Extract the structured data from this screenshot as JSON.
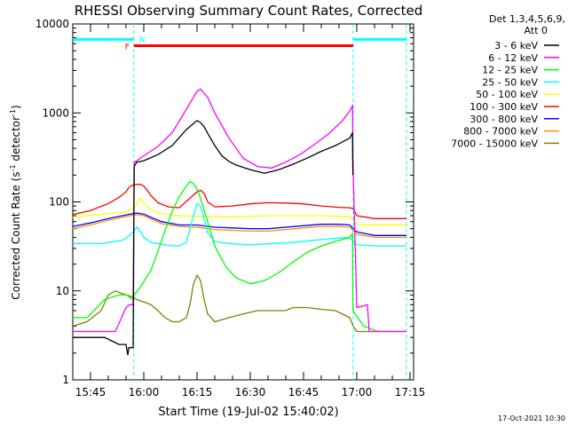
{
  "chart_data": {
    "type": "line",
    "title": "RHESSI Observing Summary Count Rates, Corrected",
    "xlabel": "Start Time (19-Jul-02 15:40:02)",
    "ylabel": "Corrected Count Rate (s",
    "ylabel_sup": "-1",
    "ylabel_mid": " detector",
    "ylabel_sup2": "-1",
    "ylabel_end": ")",
    "x_unit": "minutes since 15:40:02",
    "xlim": [
      0,
      96
    ],
    "ylim": [
      1,
      10000
    ],
    "yscale": "log",
    "x_ticks": [
      {
        "label": "15:45",
        "x": 5
      },
      {
        "label": "16:00",
        "x": 20
      },
      {
        "label": "16:15",
        "x": 35
      },
      {
        "label": "16:30",
        "x": 50
      },
      {
        "label": "16:45",
        "x": 65
      },
      {
        "label": "17:00",
        "x": 80
      },
      {
        "label": "17:15",
        "x": 95
      }
    ],
    "y_ticks": [
      {
        "label": "1",
        "v": 1
      },
      {
        "label": "10",
        "v": 10
      },
      {
        "label": "100",
        "v": 100
      },
      {
        "label": "1000",
        "v": 1000
      },
      {
        "label": "10000",
        "v": 10000
      }
    ],
    "legend_header": [
      "Det 1,3,4,5,6,9,",
      "Att 0"
    ],
    "legend_position": "right",
    "flag_labels": {
      "F": "F",
      "N": "N"
    },
    "flags": [
      {
        "name": "N",
        "color": "#00ffff",
        "y": 6700,
        "segments": [
          [
            0,
            17.2
          ],
          [
            79,
            94
          ]
        ]
      },
      {
        "name": "F",
        "color": "#ff0000",
        "y": 5700,
        "segments": [
          [
            17.2,
            79
          ]
        ]
      }
    ],
    "night_lines": [
      17.2,
      79,
      94
    ],
    "series": [
      {
        "name": "3 - 6 keV",
        "color": "#000000",
        "x": [
          0,
          9,
          13,
          15,
          15.5,
          15.8,
          17,
          17.3,
          18,
          20,
          24,
          28,
          30,
          32,
          34,
          35,
          36,
          37,
          38,
          40,
          42,
          44,
          46,
          50,
          54,
          58,
          62,
          66,
          70,
          74,
          78,
          78.8,
          78.9
        ],
        "y": [
          3,
          3,
          2.5,
          2.5,
          1.9,
          2.3,
          2.3,
          250,
          280,
          290,
          340,
          430,
          530,
          650,
          760,
          820,
          780,
          700,
          590,
          430,
          330,
          285,
          260,
          230,
          210,
          230,
          265,
          310,
          370,
          430,
          520,
          600,
          200
        ]
      },
      {
        "name": "6 - 12 keV",
        "color": "#ff00ff",
        "x": [
          0,
          12,
          15,
          16,
          17,
          17.3,
          18,
          20,
          24,
          28,
          32,
          34,
          35,
          36,
          38,
          40,
          44,
          48,
          52,
          56,
          60,
          64,
          68,
          72,
          76,
          78,
          78.8,
          78.9,
          80,
          82,
          83,
          83.5,
          84,
          86,
          94
        ],
        "y": [
          3.5,
          3.5,
          6.5,
          7,
          7,
          280,
          290,
          330,
          420,
          600,
          1100,
          1500,
          1750,
          1850,
          1500,
          1000,
          520,
          310,
          250,
          240,
          280,
          340,
          440,
          580,
          820,
          1050,
          1200,
          300,
          6.5,
          6.8,
          7,
          3.5,
          3.5,
          3.5,
          3.5
        ]
      },
      {
        "name": "12 - 25 keV",
        "color": "#00ff00",
        "x": [
          0,
          4,
          9,
          13,
          15,
          16,
          17,
          17.3,
          19,
          22,
          24,
          26,
          28,
          30,
          32,
          33,
          34,
          35,
          36,
          38,
          40,
          43,
          46,
          50,
          54,
          58,
          62,
          66,
          70,
          74,
          78,
          78.8,
          78.9,
          82,
          86,
          94
        ],
        "y": [
          5,
          5,
          8,
          9,
          9,
          8.5,
          8,
          9,
          11,
          17,
          28,
          48,
          78,
          115,
          150,
          170,
          160,
          140,
          110,
          60,
          32,
          19,
          14,
          12,
          13,
          16,
          21,
          27,
          32,
          36,
          40,
          44,
          6,
          4,
          3.5,
          3.5
        ]
      },
      {
        "name": "25 - 50 keV",
        "color": "#00ffff",
        "x": [
          0,
          8,
          12,
          14,
          15,
          16,
          17,
          18,
          19,
          20,
          22,
          24,
          26,
          28,
          30,
          32,
          34,
          35,
          36,
          37,
          38,
          40,
          44,
          50,
          56,
          62,
          68,
          74,
          78,
          80,
          86,
          94
        ],
        "y": [
          34,
          34,
          36,
          37,
          39,
          42,
          46,
          52,
          47,
          40,
          35,
          34,
          33,
          32,
          32,
          35,
          70,
          95,
          90,
          65,
          45,
          36,
          34,
          33,
          34,
          35,
          37,
          39,
          40,
          33,
          32,
          32
        ]
      },
      {
        "name": "50 - 100 keV",
        "color": "#ffff00",
        "x": [
          0,
          10,
          15,
          16.5,
          18,
          19,
          20,
          22,
          25,
          30,
          35,
          40,
          45,
          50,
          55,
          60,
          65,
          70,
          75,
          78,
          80,
          85,
          94
        ],
        "y": [
          68,
          74,
          76,
          85,
          93,
          110,
          98,
          82,
          74,
          70,
          69,
          68,
          68,
          69,
          70,
          70,
          70,
          70,
          69,
          68,
          56,
          55,
          55
        ]
      },
      {
        "name": "100 - 300 keV",
        "color": "#ff0000",
        "x": [
          0,
          5,
          10,
          13,
          15,
          16,
          17,
          18,
          19,
          20,
          21,
          22,
          24,
          27,
          30,
          33,
          35,
          36,
          37,
          38,
          40,
          45,
          50,
          55,
          60,
          65,
          70,
          75,
          78,
          79,
          80,
          85,
          94
        ],
        "y": [
          72,
          80,
          96,
          112,
          130,
          148,
          155,
          157,
          158,
          150,
          135,
          118,
          98,
          88,
          86,
          110,
          130,
          135,
          125,
          100,
          88,
          90,
          95,
          98,
          97,
          95,
          90,
          87,
          86,
          84,
          70,
          65,
          65
        ]
      },
      {
        "name": "300 - 800 keV",
        "color": "#0000ff",
        "x": [
          0,
          5,
          10,
          14,
          17,
          18,
          20,
          22,
          25,
          30,
          35,
          40,
          45,
          50,
          55,
          60,
          65,
          70,
          75,
          78,
          80,
          85,
          94
        ],
        "y": [
          53,
          58,
          65,
          70,
          74,
          75,
          73,
          67,
          60,
          55,
          55,
          52,
          51,
          50,
          50,
          52,
          54,
          56,
          56,
          55,
          46,
          42,
          42
        ]
      },
      {
        "name": "800 - 7000 keV",
        "color": "#ff8c00",
        "x": [
          0,
          5,
          10,
          14,
          17,
          18,
          20,
          22,
          25,
          30,
          35,
          40,
          45,
          50,
          55,
          60,
          65,
          70,
          75,
          78,
          80,
          85,
          94
        ],
        "y": [
          50,
          55,
          62,
          67,
          71,
          72,
          70,
          64,
          57,
          53,
          52,
          49,
          48,
          47,
          47,
          49,
          51,
          53,
          53,
          52,
          43,
          40,
          40
        ]
      },
      {
        "name": "7000 - 15000 keV",
        "color": "#808000",
        "x": [
          0,
          4,
          8,
          10,
          12,
          15,
          17,
          18,
          20,
          22,
          24,
          26,
          28,
          30,
          32,
          33,
          34,
          35,
          36,
          37,
          38,
          40,
          44,
          48,
          52,
          56,
          60,
          62,
          66,
          70,
          74,
          78,
          79,
          80,
          86,
          94
        ],
        "y": [
          4,
          4.5,
          6,
          9,
          10,
          9,
          8.5,
          8,
          7.5,
          7,
          6,
          5,
          4.5,
          4.5,
          5,
          7,
          12,
          15,
          13,
          8,
          5.5,
          4.5,
          5,
          5.5,
          6,
          6,
          6,
          6.5,
          6.5,
          6.2,
          6,
          5,
          4,
          3.5,
          3.5,
          3.5
        ]
      }
    ],
    "annotations": {
      "timestamp": "17-Oct-2021 10:30"
    }
  }
}
